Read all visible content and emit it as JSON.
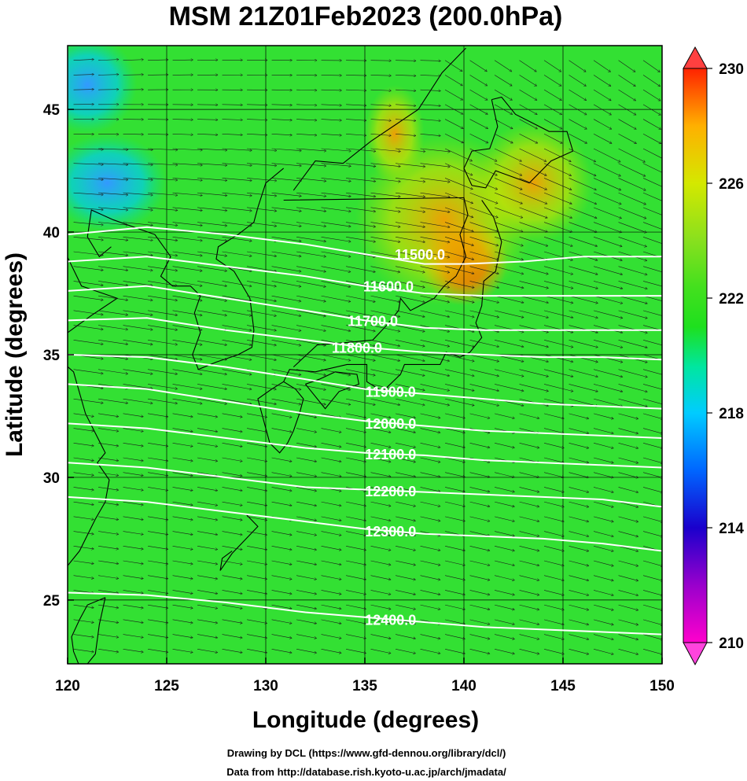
{
  "title": "MSM 21Z01Feb2023 (200.0hPa)",
  "xlabel": "Longitude (degrees)",
  "ylabel": "Latitude  (degrees)",
  "credits": [
    "Drawing by DCL (https://www.gfd-dennou.org/library/dcl/)",
    "Data from http://database.rish.kyoto-u.ac.jp/arch/jmadata/"
  ],
  "map": {
    "lon_range": [
      120,
      150
    ],
    "lat_range": [
      22.4,
      47.6
    ],
    "lon_ticks": [
      "120",
      "125",
      "130",
      "135",
      "140",
      "145",
      "150"
    ],
    "lat_ticks": [
      "25",
      "30",
      "35",
      "40",
      "45"
    ],
    "lon_tick_values": [
      120,
      125,
      130,
      135,
      140,
      145,
      150
    ],
    "lat_tick_values": [
      25,
      30,
      35,
      40,
      45
    ],
    "grid": true,
    "background_color": "#33e033",
    "coastline_color": "#000000",
    "wind_arrow_color": "#1a1a1a",
    "contour_color": "#ffffff"
  },
  "colorbar": {
    "range": [
      210,
      230
    ],
    "tick_labels": [
      "230",
      "226",
      "222",
      "218",
      "214",
      "210"
    ],
    "tick_values": [
      230,
      226,
      222,
      218,
      214,
      210
    ],
    "colors": [
      "#ff00cc",
      "#9900cc",
      "#1a00cc",
      "#0066ff",
      "#00ccff",
      "#00e6a0",
      "#1ee01e",
      "#44e01e",
      "#88e01e",
      "#d4e800",
      "#ffb000",
      "#ff2200"
    ]
  },
  "chart_data": {
    "type": "heatmap",
    "title": "MSM 21Z01Feb2023 (200.0hPa)",
    "xlabel": "Longitude (degrees)",
    "ylabel": "Latitude  (degrees)",
    "xlim": [
      120,
      150
    ],
    "ylim": [
      22.4,
      47.6
    ],
    "colorbar_range": [
      210,
      230
    ],
    "contours": [
      {
        "label": "11500.0",
        "value": 11500,
        "points": [
          [
            120,
            39.9
          ],
          [
            124,
            40.2
          ],
          [
            128,
            39.9
          ],
          [
            132,
            39.5
          ],
          [
            135,
            39.1
          ],
          [
            138,
            38.7
          ],
          [
            140,
            38.7
          ],
          [
            143,
            38.8
          ],
          [
            146,
            39.0
          ],
          [
            150,
            39.0
          ]
        ]
      },
      {
        "label": "11600.0",
        "value": 11600,
        "points": [
          [
            120,
            38.8
          ],
          [
            124,
            39.0
          ],
          [
            128,
            38.6
          ],
          [
            132,
            38.2
          ],
          [
            135,
            37.8
          ],
          [
            138,
            37.5
          ],
          [
            141,
            37.4
          ],
          [
            144,
            37.4
          ],
          [
            147,
            37.4
          ],
          [
            150,
            37.4
          ]
        ]
      },
      {
        "label": "11700.0",
        "value": 11700,
        "points": [
          [
            120,
            37.6
          ],
          [
            124,
            37.8
          ],
          [
            128,
            37.3
          ],
          [
            132,
            36.8
          ],
          [
            135,
            36.4
          ],
          [
            138,
            36.1
          ],
          [
            141,
            36.0
          ],
          [
            144,
            36.0
          ],
          [
            147,
            36.0
          ],
          [
            150,
            36.0
          ]
        ]
      },
      {
        "label": "11800.0",
        "value": 11800,
        "points": [
          [
            120,
            36.4
          ],
          [
            124,
            36.5
          ],
          [
            128,
            36.0
          ],
          [
            132,
            35.6
          ],
          [
            135,
            35.3
          ],
          [
            138,
            35.1
          ],
          [
            141,
            35.0
          ],
          [
            144,
            34.9
          ],
          [
            147,
            34.9
          ],
          [
            150,
            34.8
          ]
        ]
      },
      {
        "label": "11900.0",
        "value": 11900,
        "points": [
          [
            120,
            35.0
          ],
          [
            124,
            34.9
          ],
          [
            128,
            34.5
          ],
          [
            132,
            34.0
          ],
          [
            135,
            33.6
          ],
          [
            138,
            33.4
          ],
          [
            141,
            33.2
          ],
          [
            144,
            33.0
          ],
          [
            147,
            32.9
          ],
          [
            150,
            32.8
          ]
        ]
      },
      {
        "label": "12000.0",
        "value": 12000,
        "points": [
          [
            120,
            33.8
          ],
          [
            124,
            33.6
          ],
          [
            128,
            33.1
          ],
          [
            132,
            32.6
          ],
          [
            135,
            32.3
          ],
          [
            138,
            32.1
          ],
          [
            141,
            31.9
          ],
          [
            144,
            31.8
          ],
          [
            147,
            31.7
          ],
          [
            150,
            31.6
          ]
        ]
      },
      {
        "label": "12100.0",
        "value": 12100,
        "points": [
          [
            120,
            32.2
          ],
          [
            124,
            32.0
          ],
          [
            128,
            31.6
          ],
          [
            132,
            31.2
          ],
          [
            135,
            31.0
          ],
          [
            138,
            30.9
          ],
          [
            141,
            30.7
          ],
          [
            144,
            30.6
          ],
          [
            147,
            30.5
          ],
          [
            150,
            30.4
          ]
        ]
      },
      {
        "label": "12200.0",
        "value": 12200,
        "points": [
          [
            120,
            30.6
          ],
          [
            124,
            30.4
          ],
          [
            128,
            30.0
          ],
          [
            132,
            29.6
          ],
          [
            135,
            29.5
          ],
          [
            138,
            29.4
          ],
          [
            141,
            29.3
          ],
          [
            144,
            29.2
          ],
          [
            147,
            29.1
          ],
          [
            150,
            28.8
          ]
        ]
      },
      {
        "label": "12300.0",
        "value": 12300,
        "points": [
          [
            120,
            29.2
          ],
          [
            124,
            29.0
          ],
          [
            128,
            28.6
          ],
          [
            132,
            28.2
          ],
          [
            135,
            27.9
          ],
          [
            138,
            27.7
          ],
          [
            141,
            27.6
          ],
          [
            144,
            27.5
          ],
          [
            147,
            27.3
          ],
          [
            150,
            27.0
          ]
        ]
      },
      {
        "label": "12400.0",
        "value": 12400,
        "points": [
          [
            120,
            25.3
          ],
          [
            124,
            25.2
          ],
          [
            128,
            24.9
          ],
          [
            132,
            24.5
          ],
          [
            135,
            24.3
          ],
          [
            138,
            24.1
          ],
          [
            141,
            23.9
          ],
          [
            144,
            23.8
          ],
          [
            147,
            23.7
          ],
          [
            150,
            23.6
          ]
        ]
      }
    ],
    "warm_regions": [
      {
        "value": 229,
        "center": [
          140.0,
          38.8
        ],
        "radius": [
          2.2,
          1.8
        ]
      },
      {
        "value": 226,
        "center": [
          139.0,
          40.5
        ],
        "radius": [
          4.5,
          3.5
        ]
      },
      {
        "value": 226,
        "center": [
          143.5,
          42.0
        ],
        "radius": [
          3.0,
          2.5
        ]
      },
      {
        "value": 225,
        "center": [
          136.5,
          44.0
        ],
        "radius": [
          1.5,
          2.0
        ]
      }
    ],
    "cold_regions": [
      {
        "value": 218,
        "center": [
          121.0,
          46.0
        ],
        "radius": [
          2.5,
          2.0
        ]
      },
      {
        "value": 219,
        "center": [
          122.0,
          42.0
        ],
        "radius": [
          3.0,
          2.0
        ]
      }
    ]
  }
}
